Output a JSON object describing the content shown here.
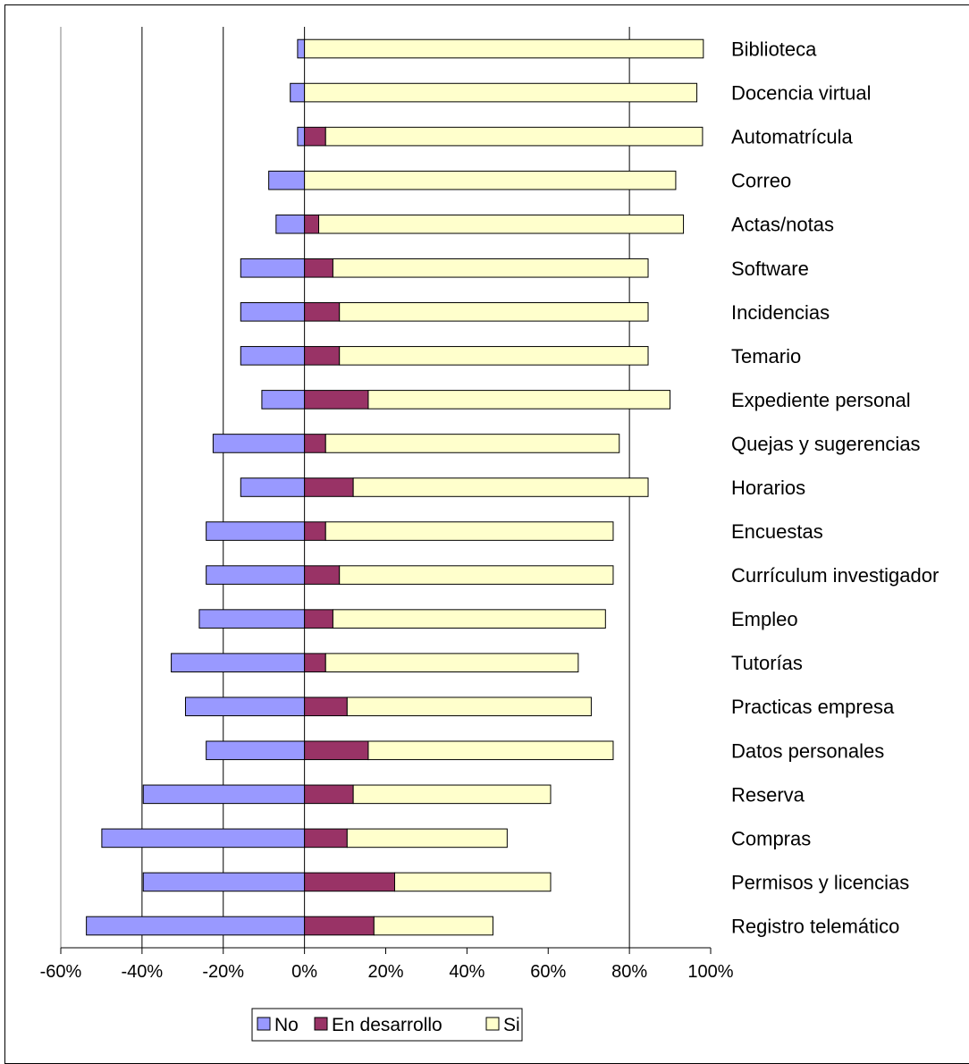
{
  "chart_data": {
    "type": "bar",
    "orientation": "horizontal",
    "stacked": true,
    "categories": [
      "Biblioteca",
      "Docencia virtual",
      "Automatrícula",
      "Correo",
      "Actas/notas",
      "Software",
      "Incidencias",
      "Temario",
      "Expediente personal",
      "Quejas y sugerencias",
      "Horarios",
      "Encuestas",
      "Currículum investigador",
      "Empleo",
      "Tutorías",
      "Practicas empresa",
      "Datos personales",
      "Reserva",
      "Compras",
      "Permisos y licencias",
      "Registro telemático"
    ],
    "series": [
      {
        "name": "No",
        "color": "#9999ff",
        "values": [
          -1.7,
          -3.5,
          -1.7,
          -8.8,
          -7,
          -15.7,
          -15.7,
          -15.7,
          -10.5,
          -22.5,
          -15.7,
          -24.2,
          -24.2,
          -25.9,
          -32.8,
          -29.3,
          -24.2,
          -39.7,
          -49.9,
          -39.7,
          -53.7
        ]
      },
      {
        "name": "En desarrollo",
        "color": "#993366",
        "values": [
          0,
          0,
          5.2,
          0,
          3.5,
          7,
          8.6,
          8.6,
          15.7,
          5.2,
          12,
          5.2,
          8.6,
          7,
          5.2,
          10.5,
          15.7,
          12,
          10.5,
          22.2,
          17.1
        ]
      },
      {
        "name": "Si",
        "color": "#ffffcc",
        "values": [
          98.2,
          96.6,
          92.8,
          91.4,
          89.8,
          77.6,
          76,
          76,
          74.3,
          72.3,
          72.6,
          70.8,
          67.4,
          67.1,
          62.2,
          60.1,
          60.3,
          48.6,
          39.4,
          38.4,
          29.3
        ]
      }
    ],
    "x_ticks": [
      "-60%",
      "-40%",
      "-20%",
      "0%",
      "20%",
      "40%",
      "60%",
      "80%",
      "100%"
    ],
    "xlim": [
      -60,
      100
    ],
    "grid": "vertical lines at -40%, -20%, 0%, 80%",
    "legend": {
      "position": "bottom-center",
      "items": [
        "No",
        "En desarrollo",
        "Si"
      ]
    },
    "category_labels_position": "right",
    "title": "",
    "xlabel": "",
    "ylabel": ""
  }
}
